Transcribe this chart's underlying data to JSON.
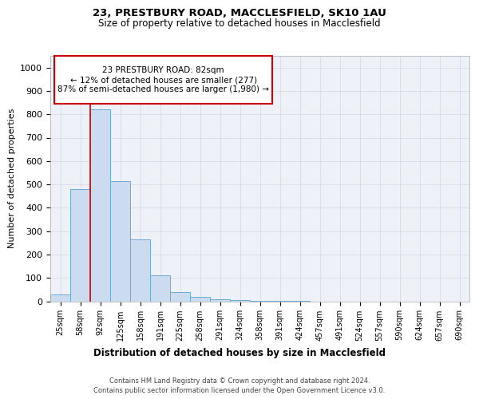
{
  "title1": "23, PRESTBURY ROAD, MACCLESFIELD, SK10 1AU",
  "title2": "Size of property relative to detached houses in Macclesfield",
  "xlabel": "Distribution of detached houses by size in Macclesfield",
  "ylabel": "Number of detached properties",
  "bar_labels": [
    "25sqm",
    "58sqm",
    "92sqm",
    "125sqm",
    "158sqm",
    "191sqm",
    "225sqm",
    "258sqm",
    "291sqm",
    "324sqm",
    "358sqm",
    "391sqm",
    "424sqm",
    "457sqm",
    "491sqm",
    "524sqm",
    "557sqm",
    "590sqm",
    "624sqm",
    "657sqm",
    "690sqm"
  ],
  "bar_values": [
    30,
    480,
    820,
    515,
    265,
    110,
    40,
    20,
    10,
    5,
    2,
    1,
    1,
    0,
    0,
    0,
    0,
    0,
    0,
    0,
    0
  ],
  "bar_color": "#ccdcf0",
  "bar_edge_color": "#6aaad4",
  "grid_color": "#d0d8e4",
  "background_color": "#eef2f8",
  "annotation_text": "23 PRESTBURY ROAD: 82sqm\n← 12% of detached houses are smaller (277)\n87% of semi-detached houses are larger (1,980) →",
  "annotation_box_facecolor": "#ffffff",
  "annotation_border_color": "#cc0000",
  "red_line_x": 1.5,
  "ylim": [
    0,
    1050
  ],
  "yticks": [
    0,
    100,
    200,
    300,
    400,
    500,
    600,
    700,
    800,
    900,
    1000
  ],
  "footer1": "Contains HM Land Registry data © Crown copyright and database right 2024.",
  "footer2": "Contains public sector information licensed under the Open Government Licence v3.0."
}
